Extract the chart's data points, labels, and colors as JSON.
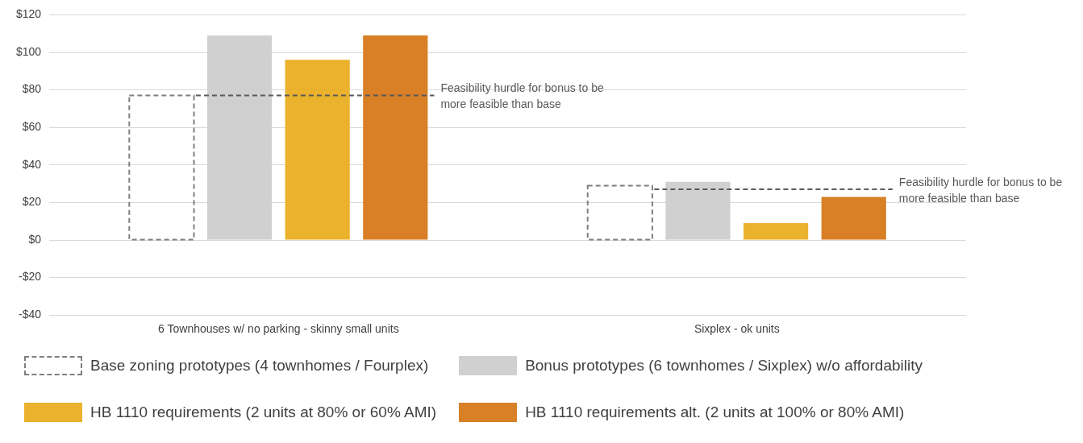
{
  "chart_data": {
    "type": "bar",
    "categories": [
      "6 Townhouses w/ no parking - skinny small units",
      "Sixplex - ok units"
    ],
    "series": [
      {
        "name": "Base zoning prototypes (4 townhomes / Fourplex)",
        "color": "#7f7f7f",
        "line_style": "dashed",
        "values": [
          77,
          29
        ]
      },
      {
        "name": "Bonus prototypes (6 townhomes / Sixplex) w/o affordability",
        "color": "#d0d0d0",
        "values": [
          109,
          31
        ]
      },
      {
        "name": "HB 1110 requirements (2 units at 80% or 60% AMI)",
        "color": "#ebb22d",
        "values": [
          96,
          9
        ]
      },
      {
        "name": "HB 1110 requirements alt. (2 units at 100% or 80% AMI)",
        "color": "#d97f26",
        "values": [
          109,
          23
        ]
      }
    ],
    "ylim": [
      -40,
      120
    ],
    "yticks": [
      {
        "value": -40,
        "label": "-$40"
      },
      {
        "value": -20,
        "label": "-$20"
      },
      {
        "value": 0,
        "label": "$0"
      },
      {
        "value": 20,
        "label": "$20"
      },
      {
        "value": 40,
        "label": "$40"
      },
      {
        "value": 60,
        "label": "$60"
      },
      {
        "value": 80,
        "label": "$80"
      },
      {
        "value": 100,
        "label": "$100"
      },
      {
        "value": 120,
        "label": "$120"
      }
    ],
    "ref_lines": [
      {
        "axis": "y",
        "value": 77,
        "label": "Feasibility hurdle for bonus to be more feasible than base",
        "color": "#595959",
        "line_style": "dashed"
      },
      {
        "axis": "y",
        "value": 27,
        "label": "Feasibility hurdle for bonus to be more feasible than base",
        "color": "#595959",
        "line_style": "dashed"
      }
    ],
    "grid": "y",
    "legend": "bottom"
  }
}
